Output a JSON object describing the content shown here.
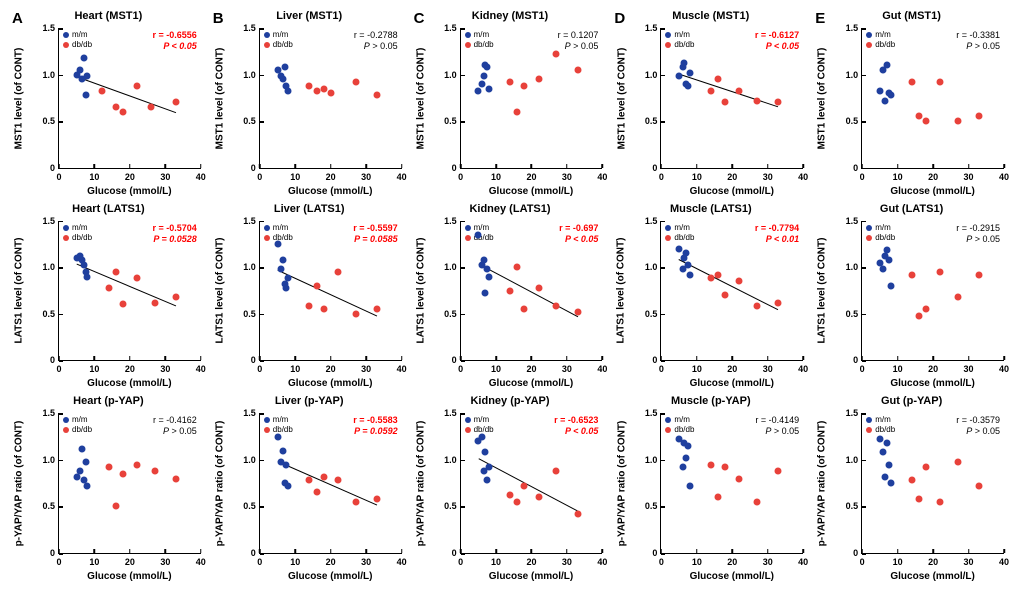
{
  "colors": {
    "mm": "#1f3f9e",
    "dbdb": "#e8413a",
    "line": "#000000",
    "bg": "#ffffff"
  },
  "legend": {
    "mm": "m/m",
    "dbdb": "db/db"
  },
  "x_axis": {
    "label": "Glucose (mmol/L)",
    "min": 0,
    "max": 40,
    "ticks": [
      0,
      10,
      20,
      30,
      40
    ]
  },
  "y_axis": {
    "min": 0,
    "max": 1.5,
    "ticks": [
      0,
      0.5,
      1.0,
      1.5
    ]
  },
  "columns": [
    {
      "letter": "A",
      "tissue": "Heart"
    },
    {
      "letter": "B",
      "tissue": "Liver"
    },
    {
      "letter": "C",
      "tissue": "Kidney"
    },
    {
      "letter": "D",
      "tissue": "Muscle"
    },
    {
      "letter": "E",
      "tissue": "Gut"
    }
  ],
  "rows": [
    {
      "protein": "MST1",
      "ylabel": "MST1 level (of CONT)"
    },
    {
      "protein": "LATS1",
      "ylabel": "LATS1 level (of CONT)"
    },
    {
      "protein": "p-YAP",
      "ylabel": "p-YAP/YAP ratio (of CONT)"
    }
  ],
  "panels": [
    [
      {
        "title": "Heart (MST1)",
        "r": -0.6556,
        "p": "< 0.05",
        "sig": true,
        "fit": true,
        "mm": [
          [
            5,
            1.0
          ],
          [
            6,
            1.05
          ],
          [
            7,
            1.18
          ],
          [
            6.5,
            0.95
          ],
          [
            8,
            0.98
          ],
          [
            7.5,
            0.78
          ]
        ],
        "db": [
          [
            12,
            0.82
          ],
          [
            16,
            0.65
          ],
          [
            18,
            0.6
          ],
          [
            22,
            0.88
          ],
          [
            26,
            0.65
          ],
          [
            33,
            0.7
          ]
        ]
      },
      {
        "title": "Liver (MST1)",
        "r": -0.2788,
        "p": "> 0.05",
        "sig": false,
        "fit": false,
        "mm": [
          [
            5,
            1.05
          ],
          [
            6,
            0.98
          ],
          [
            6.5,
            0.95
          ],
          [
            7,
            1.08
          ],
          [
            7.5,
            0.88
          ],
          [
            8,
            0.82
          ]
        ],
        "db": [
          [
            14,
            0.88
          ],
          [
            16,
            0.82
          ],
          [
            18,
            0.85
          ],
          [
            20,
            0.8
          ],
          [
            27,
            0.92
          ],
          [
            33,
            0.78
          ]
        ]
      },
      {
        "title": "Kidney (MST1)",
        "r": 0.1207,
        "p": "> 0.05",
        "sig": false,
        "fit": false,
        "mm": [
          [
            5,
            0.82
          ],
          [
            6,
            0.9
          ],
          [
            6.5,
            0.98
          ],
          [
            7,
            1.1
          ],
          [
            7.5,
            1.08
          ],
          [
            8,
            0.85
          ]
        ],
        "db": [
          [
            14,
            0.92
          ],
          [
            16,
            0.6
          ],
          [
            18,
            0.88
          ],
          [
            22,
            0.95
          ],
          [
            27,
            1.22
          ],
          [
            33,
            1.05
          ]
        ]
      },
      {
        "title": "Muscle (MST1)",
        "r": -0.6127,
        "p": "< 0.05",
        "sig": true,
        "fit": true,
        "mm": [
          [
            5,
            0.98
          ],
          [
            6,
            1.08
          ],
          [
            6.5,
            1.12
          ],
          [
            7,
            0.9
          ],
          [
            7.5,
            0.88
          ],
          [
            8,
            1.02
          ]
        ],
        "db": [
          [
            14,
            0.82
          ],
          [
            16,
            0.95
          ],
          [
            18,
            0.7
          ],
          [
            22,
            0.82
          ],
          [
            27,
            0.72
          ],
          [
            33,
            0.7
          ]
        ]
      },
      {
        "title": "Gut (MST1)",
        "r": -0.3381,
        "p": "> 0.05",
        "sig": false,
        "fit": false,
        "mm": [
          [
            5,
            0.82
          ],
          [
            6,
            1.05
          ],
          [
            6.5,
            0.72
          ],
          [
            7,
            1.1
          ],
          [
            7.5,
            0.8
          ],
          [
            8,
            0.78
          ]
        ],
        "db": [
          [
            14,
            0.92
          ],
          [
            16,
            0.55
          ],
          [
            18,
            0.5
          ],
          [
            22,
            0.92
          ],
          [
            27,
            0.5
          ],
          [
            33,
            0.55
          ]
        ]
      }
    ],
    [
      {
        "title": "Heart (LATS1)",
        "r": -0.5704,
        "p": "= 0.0528",
        "sig": true,
        "fit": true,
        "mm": [
          [
            5,
            1.1
          ],
          [
            6,
            1.12
          ],
          [
            6.5,
            1.08
          ],
          [
            7,
            1.02
          ],
          [
            7.5,
            0.95
          ],
          [
            8,
            0.9
          ]
        ],
        "db": [
          [
            14,
            0.78
          ],
          [
            16,
            0.95
          ],
          [
            18,
            0.6
          ],
          [
            22,
            0.88
          ],
          [
            27,
            0.62
          ],
          [
            33,
            0.68
          ]
        ]
      },
      {
        "title": "Liver (LATS1)",
        "r": -0.5597,
        "p": "= 0.0585",
        "sig": true,
        "fit": true,
        "mm": [
          [
            5,
            1.25
          ],
          [
            6,
            0.98
          ],
          [
            6.5,
            1.08
          ],
          [
            7,
            0.82
          ],
          [
            7.5,
            0.78
          ],
          [
            8,
            0.88
          ]
        ],
        "db": [
          [
            14,
            0.58
          ],
          [
            16,
            0.8
          ],
          [
            18,
            0.55
          ],
          [
            22,
            0.95
          ],
          [
            27,
            0.5
          ],
          [
            33,
            0.55
          ]
        ]
      },
      {
        "title": "Kidney (LATS1)",
        "r": -0.697,
        "p": "< 0.05",
        "sig": true,
        "fit": true,
        "mm": [
          [
            5,
            1.35
          ],
          [
            6,
            1.02
          ],
          [
            6.5,
            1.08
          ],
          [
            7,
            0.72
          ],
          [
            7.5,
            0.98
          ],
          [
            8,
            0.9
          ]
        ],
        "db": [
          [
            14,
            0.75
          ],
          [
            16,
            1.0
          ],
          [
            18,
            0.55
          ],
          [
            22,
            0.78
          ],
          [
            27,
            0.58
          ],
          [
            33,
            0.52
          ]
        ]
      },
      {
        "title": "Muscle (LATS1)",
        "r": -0.7794,
        "p": "< 0.01",
        "sig": true,
        "fit": true,
        "mm": [
          [
            5,
            1.2
          ],
          [
            6,
            0.98
          ],
          [
            6.5,
            1.1
          ],
          [
            7,
            1.15
          ],
          [
            7.5,
            1.02
          ],
          [
            8,
            0.92
          ]
        ],
        "db": [
          [
            14,
            0.88
          ],
          [
            16,
            0.92
          ],
          [
            18,
            0.7
          ],
          [
            22,
            0.85
          ],
          [
            27,
            0.58
          ],
          [
            33,
            0.62
          ]
        ]
      },
      {
        "title": "Gut (LATS1)",
        "r": -0.2915,
        "p": "> 0.05",
        "sig": false,
        "fit": false,
        "mm": [
          [
            5,
            1.05
          ],
          [
            6,
            0.98
          ],
          [
            6.5,
            1.12
          ],
          [
            7,
            1.18
          ],
          [
            7.5,
            1.08
          ],
          [
            8,
            0.8
          ]
        ],
        "db": [
          [
            14,
            0.92
          ],
          [
            16,
            0.48
          ],
          [
            18,
            0.55
          ],
          [
            22,
            0.95
          ],
          [
            27,
            0.68
          ],
          [
            33,
            0.92
          ]
        ]
      }
    ],
    [
      {
        "title": "Heart (p-YAP)",
        "r": -0.4162,
        "p": "> 0.05",
        "sig": false,
        "fit": false,
        "mm": [
          [
            5,
            0.82
          ],
          [
            6,
            0.88
          ],
          [
            6.5,
            1.12
          ],
          [
            7,
            0.78
          ],
          [
            7.5,
            0.98
          ],
          [
            8,
            0.72
          ]
        ],
        "db": [
          [
            14,
            0.92
          ],
          [
            16,
            0.5
          ],
          [
            18,
            0.85
          ],
          [
            22,
            0.95
          ],
          [
            27,
            0.88
          ],
          [
            33,
            0.8
          ]
        ]
      },
      {
        "title": "Liver (p-YAP)",
        "r": -0.5583,
        "p": "= 0.0592",
        "sig": true,
        "fit": true,
        "mm": [
          [
            5,
            1.25
          ],
          [
            6,
            0.98
          ],
          [
            6.5,
            1.1
          ],
          [
            7,
            0.75
          ],
          [
            7.5,
            0.95
          ],
          [
            8,
            0.72
          ]
        ],
        "db": [
          [
            14,
            0.78
          ],
          [
            16,
            0.65
          ],
          [
            18,
            0.82
          ],
          [
            22,
            0.78
          ],
          [
            27,
            0.55
          ],
          [
            33,
            0.58
          ]
        ]
      },
      {
        "title": "Kidney (p-YAP)",
        "r": -0.6523,
        "p": "< 0.05",
        "sig": true,
        "fit": true,
        "mm": [
          [
            5,
            1.2
          ],
          [
            6,
            1.25
          ],
          [
            6.5,
            0.88
          ],
          [
            7,
            1.08
          ],
          [
            7.5,
            0.78
          ],
          [
            8,
            0.92
          ]
        ],
        "db": [
          [
            14,
            0.62
          ],
          [
            16,
            0.55
          ],
          [
            18,
            0.72
          ],
          [
            22,
            0.6
          ],
          [
            27,
            0.88
          ],
          [
            33,
            0.42
          ]
        ]
      },
      {
        "title": "Muscle (p-YAP)",
        "r": -0.4149,
        "p": "> 0.05",
        "sig": false,
        "fit": false,
        "mm": [
          [
            5,
            1.22
          ],
          [
            6,
            0.92
          ],
          [
            6.5,
            1.18
          ],
          [
            7,
            1.02
          ],
          [
            7.5,
            1.15
          ],
          [
            8,
            0.72
          ]
        ],
        "db": [
          [
            14,
            0.95
          ],
          [
            16,
            0.6
          ],
          [
            18,
            0.92
          ],
          [
            22,
            0.8
          ],
          [
            27,
            0.55
          ],
          [
            33,
            0.88
          ]
        ]
      },
      {
        "title": "Gut (p-YAP)",
        "r": -0.3579,
        "p": "> 0.05",
        "sig": false,
        "fit": false,
        "mm": [
          [
            5,
            1.22
          ],
          [
            6,
            1.08
          ],
          [
            6.5,
            0.82
          ],
          [
            7,
            1.18
          ],
          [
            7.5,
            0.95
          ],
          [
            8,
            0.75
          ]
        ],
        "db": [
          [
            14,
            0.78
          ],
          [
            16,
            0.58
          ],
          [
            18,
            0.92
          ],
          [
            22,
            0.55
          ],
          [
            27,
            0.98
          ],
          [
            33,
            0.72
          ]
        ]
      }
    ]
  ]
}
